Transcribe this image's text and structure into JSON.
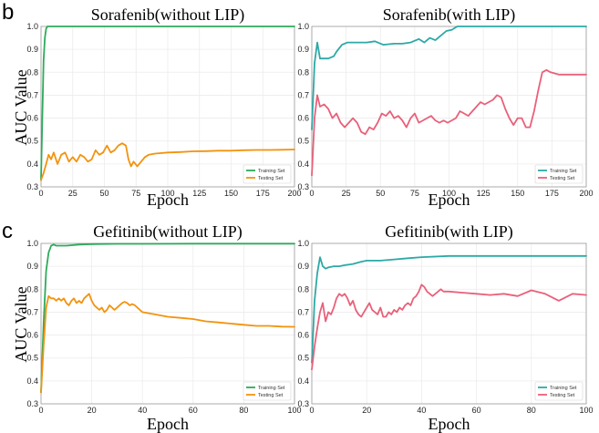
{
  "panel_labels": {
    "b": "b",
    "c": "c"
  },
  "chart_data": [
    {
      "type": "line",
      "title": "Sorafenib(without LIP)",
      "xlabel": "Epoch",
      "ylabel": "AUC Value",
      "xlim": [
        0,
        200
      ],
      "ylim": [
        0.3,
        1.0
      ],
      "xticks": [
        0,
        25,
        50,
        75,
        100,
        125,
        150,
        175,
        200
      ],
      "yticks": [
        0.3,
        0.4,
        0.5,
        0.6,
        0.7,
        0.8,
        0.9,
        1.0
      ],
      "grid": true,
      "legend": "bottom-right",
      "series": [
        {
          "name": "Training Set",
          "color": "#2eaa5c",
          "x": [
            0,
            1,
            2,
            3,
            4,
            5,
            10,
            50,
            100,
            150,
            200
          ],
          "y": [
            0.33,
            0.6,
            0.85,
            0.95,
            0.99,
            1.0,
            1.0,
            1.0,
            1.0,
            1.0,
            1.0
          ]
        },
        {
          "name": "Testing Set",
          "color": "#f2930f",
          "x": [
            0,
            2,
            4,
            6,
            8,
            10,
            13,
            16,
            19,
            22,
            25,
            28,
            31,
            34,
            37,
            40,
            43,
            46,
            49,
            52,
            55,
            58,
            61,
            64,
            67,
            69,
            71,
            73,
            76,
            79,
            82,
            85,
            90,
            100,
            110,
            120,
            130,
            140,
            150,
            160,
            170,
            180,
            190,
            200
          ],
          "y": [
            0.33,
            0.36,
            0.4,
            0.44,
            0.42,
            0.45,
            0.4,
            0.44,
            0.45,
            0.41,
            0.43,
            0.41,
            0.44,
            0.43,
            0.41,
            0.42,
            0.46,
            0.44,
            0.45,
            0.48,
            0.45,
            0.46,
            0.48,
            0.49,
            0.48,
            0.42,
            0.39,
            0.41,
            0.39,
            0.41,
            0.43,
            0.44,
            0.445,
            0.45,
            0.452,
            0.455,
            0.456,
            0.458,
            0.458,
            0.46,
            0.461,
            0.461,
            0.462,
            0.463
          ]
        }
      ]
    },
    {
      "type": "line",
      "title": "Sorafenib(with LIP)",
      "xlabel": "Epoch",
      "ylabel": "",
      "xlim": [
        0,
        200
      ],
      "ylim": [
        0.3,
        1.0
      ],
      "xticks": [
        0,
        25,
        50,
        75,
        100,
        125,
        150,
        175,
        200
      ],
      "yticks": [
        0.3,
        0.4,
        0.5,
        0.6,
        0.7,
        0.8,
        0.9,
        1.0
      ],
      "grid": true,
      "legend": "bottom-right",
      "series": [
        {
          "name": "Training Set",
          "color": "#2ca9a6",
          "x": [
            0,
            2,
            4,
            6,
            8,
            12,
            16,
            18,
            22,
            26,
            30,
            40,
            46,
            52,
            60,
            66,
            72,
            78,
            82,
            86,
            90,
            94,
            98,
            102,
            106,
            112,
            125,
            150,
            175,
            200
          ],
          "y": [
            0.55,
            0.84,
            0.93,
            0.86,
            0.86,
            0.86,
            0.87,
            0.89,
            0.92,
            0.93,
            0.93,
            0.93,
            0.935,
            0.92,
            0.925,
            0.925,
            0.93,
            0.945,
            0.93,
            0.95,
            0.94,
            0.96,
            0.98,
            0.985,
            1.0,
            1.0,
            1.0,
            1.0,
            1.0,
            1.0
          ]
        },
        {
          "name": "Testing Set",
          "color": "#e9607a",
          "x": [
            0,
            2,
            4,
            6,
            9,
            12,
            15,
            18,
            21,
            24,
            27,
            30,
            33,
            36,
            39,
            42,
            45,
            48,
            51,
            54,
            57,
            60,
            63,
            66,
            69,
            72,
            75,
            78,
            81,
            84,
            87,
            90,
            93,
            96,
            99,
            102,
            105,
            108,
            111,
            114,
            117,
            120,
            123,
            126,
            129,
            132,
            135,
            138,
            141,
            144,
            147,
            150,
            153,
            156,
            159,
            162,
            165,
            168,
            171,
            174,
            177,
            180,
            190,
            200
          ],
          "y": [
            0.35,
            0.6,
            0.7,
            0.65,
            0.66,
            0.64,
            0.6,
            0.62,
            0.58,
            0.56,
            0.58,
            0.6,
            0.58,
            0.54,
            0.53,
            0.56,
            0.55,
            0.58,
            0.62,
            0.61,
            0.63,
            0.6,
            0.61,
            0.59,
            0.56,
            0.6,
            0.62,
            0.58,
            0.59,
            0.6,
            0.61,
            0.59,
            0.58,
            0.59,
            0.58,
            0.59,
            0.6,
            0.63,
            0.62,
            0.61,
            0.63,
            0.65,
            0.67,
            0.66,
            0.67,
            0.68,
            0.7,
            0.69,
            0.64,
            0.6,
            0.57,
            0.6,
            0.6,
            0.56,
            0.56,
            0.63,
            0.72,
            0.8,
            0.81,
            0.8,
            0.795,
            0.79,
            0.79,
            0.79
          ]
        }
      ]
    },
    {
      "type": "line",
      "title": "Gefitinib(without  LIP)",
      "xlabel": "Epoch",
      "ylabel": "AUC Value",
      "xlim": [
        0,
        100
      ],
      "ylim": [
        0.3,
        1.0
      ],
      "xticks": [
        0,
        20,
        40,
        60,
        80,
        100
      ],
      "yticks": [
        0.3,
        0.4,
        0.5,
        0.6,
        0.7,
        0.8,
        0.9,
        1.0
      ],
      "grid": true,
      "legend": "bottom-right",
      "series": [
        {
          "name": "Training Set",
          "color": "#2eaa5c",
          "x": [
            0,
            1,
            2,
            3,
            4,
            5,
            6,
            8,
            10,
            15,
            20,
            30,
            40,
            60,
            80,
            100
          ],
          "y": [
            0.35,
            0.65,
            0.88,
            0.96,
            0.99,
            0.995,
            0.99,
            0.99,
            0.99,
            0.995,
            0.997,
            0.998,
            0.998,
            0.999,
            0.999,
            0.999
          ]
        },
        {
          "name": "Testing Set",
          "color": "#f2930f",
          "x": [
            0,
            1,
            2,
            3,
            4,
            5,
            6,
            7,
            8,
            9,
            10,
            11,
            12,
            13,
            14,
            15,
            16,
            17,
            18,
            19,
            20,
            21,
            22,
            23,
            24,
            25,
            26,
            27,
            28,
            29,
            30,
            31,
            32,
            33,
            34,
            35,
            36,
            37,
            38,
            40,
            45,
            50,
            55,
            60,
            65,
            70,
            75,
            80,
            85,
            90,
            95,
            100
          ],
          "y": [
            0.35,
            0.55,
            0.72,
            0.77,
            0.76,
            0.76,
            0.75,
            0.76,
            0.75,
            0.76,
            0.74,
            0.73,
            0.75,
            0.76,
            0.74,
            0.75,
            0.74,
            0.76,
            0.77,
            0.78,
            0.75,
            0.73,
            0.72,
            0.71,
            0.72,
            0.7,
            0.71,
            0.73,
            0.72,
            0.71,
            0.72,
            0.73,
            0.74,
            0.745,
            0.74,
            0.73,
            0.735,
            0.73,
            0.72,
            0.7,
            0.69,
            0.68,
            0.675,
            0.67,
            0.66,
            0.655,
            0.65,
            0.645,
            0.64,
            0.64,
            0.637,
            0.636
          ]
        }
      ]
    },
    {
      "type": "line",
      "title": "Gefitinib(with LIP)",
      "xlabel": "Epoch",
      "ylabel": "",
      "xlim": [
        0,
        100
      ],
      "ylim": [
        0.3,
        1.0
      ],
      "xticks": [
        0,
        20,
        40,
        60,
        80,
        100
      ],
      "yticks": [
        0.3,
        0.4,
        0.5,
        0.6,
        0.7,
        0.8,
        0.9,
        1.0
      ],
      "grid": true,
      "legend": "bottom-right",
      "series": [
        {
          "name": "Training Set",
          "color": "#2ca9a6",
          "x": [
            0,
            1,
            2,
            3,
            4,
            5,
            6,
            8,
            10,
            12,
            15,
            18,
            20,
            25,
            30,
            35,
            40,
            50,
            60,
            70,
            80,
            90,
            100
          ],
          "y": [
            0.48,
            0.75,
            0.87,
            0.94,
            0.9,
            0.89,
            0.895,
            0.9,
            0.9,
            0.905,
            0.91,
            0.92,
            0.925,
            0.925,
            0.93,
            0.935,
            0.94,
            0.945,
            0.945,
            0.945,
            0.945,
            0.945,
            0.945
          ]
        },
        {
          "name": "Testing Set",
          "color": "#e9607a",
          "x": [
            0,
            1,
            2,
            3,
            4,
            5,
            6,
            7,
            8,
            9,
            10,
            11,
            12,
            13,
            14,
            15,
            16,
            17,
            18,
            19,
            20,
            21,
            22,
            23,
            24,
            25,
            26,
            27,
            28,
            29,
            30,
            31,
            32,
            33,
            34,
            35,
            36,
            37,
            38,
            39,
            40,
            41,
            42,
            43,
            44,
            45,
            46,
            47,
            48,
            50,
            55,
            60,
            65,
            70,
            75,
            80,
            85,
            90,
            95,
            100
          ],
          "y": [
            0.45,
            0.55,
            0.63,
            0.7,
            0.74,
            0.66,
            0.7,
            0.69,
            0.72,
            0.76,
            0.78,
            0.77,
            0.78,
            0.76,
            0.73,
            0.75,
            0.71,
            0.69,
            0.68,
            0.7,
            0.72,
            0.74,
            0.71,
            0.7,
            0.69,
            0.72,
            0.68,
            0.68,
            0.7,
            0.69,
            0.71,
            0.7,
            0.72,
            0.71,
            0.73,
            0.74,
            0.73,
            0.76,
            0.77,
            0.79,
            0.82,
            0.81,
            0.79,
            0.78,
            0.77,
            0.78,
            0.79,
            0.8,
            0.79,
            0.79,
            0.785,
            0.78,
            0.775,
            0.78,
            0.77,
            0.795,
            0.78,
            0.75,
            0.78,
            0.775
          ]
        }
      ]
    }
  ]
}
